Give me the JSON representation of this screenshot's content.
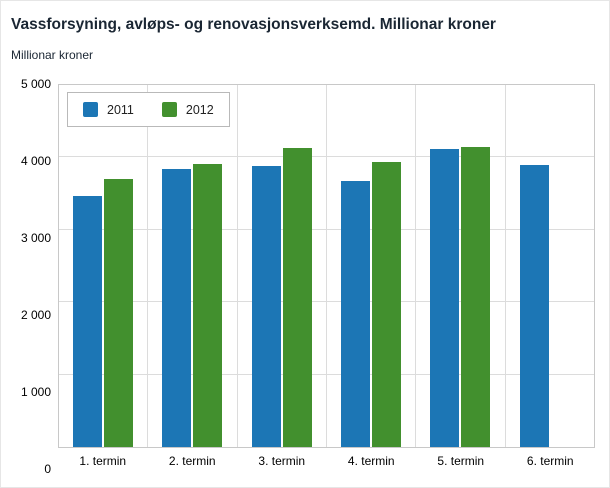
{
  "chart_data": {
    "type": "bar",
    "title": "Vassforsyning, avløps- og renovasjonsverksemd. Millionar kroner",
    "subtitle": "Millionar kroner",
    "ylabel": "Millionar kroner",
    "xlabel": "",
    "categories": [
      "1. termin",
      "2. termin",
      "3. termin",
      "4. termin",
      "5. termin",
      "6. termin"
    ],
    "series": [
      {
        "name": "2011",
        "color": "#1c76b5",
        "values": [
          3470,
          3840,
          3880,
          3680,
          4120,
          3890
        ]
      },
      {
        "name": "2012",
        "color": "#42902e",
        "values": [
          3700,
          3910,
          4130,
          3940,
          4150,
          null
        ]
      }
    ],
    "ylim": [
      0,
      5000
    ],
    "yticks": [
      0,
      1000,
      2000,
      3000,
      4000,
      5000
    ],
    "ytick_labels": [
      "0",
      "1 000",
      "2 000",
      "3 000",
      "4 000",
      "5 000"
    ],
    "grid": true,
    "legend_position": "top-left"
  }
}
